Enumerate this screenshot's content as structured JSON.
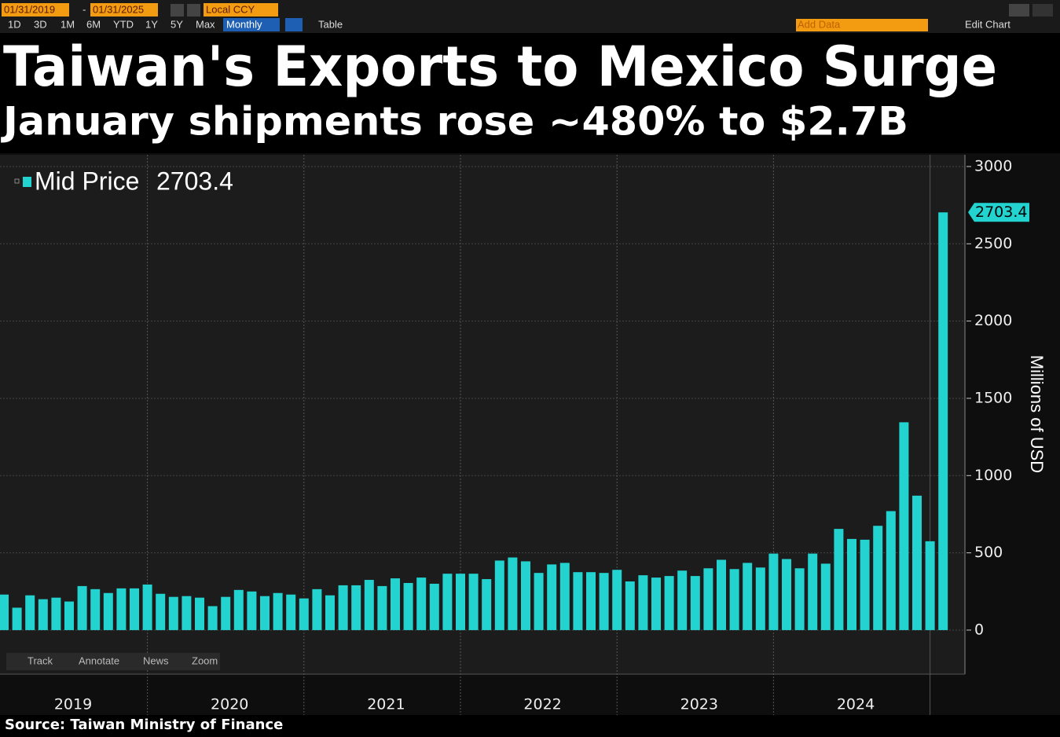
{
  "toolbar": {
    "start_date": "01/31/2019",
    "end_date": "01/31/2025",
    "currency": "Local CCY",
    "ranges": [
      "1D",
      "3D",
      "1M",
      "6M",
      "YTD",
      "1Y",
      "5Y",
      "Max"
    ],
    "frequency": "Monthly",
    "table": "Table",
    "add_data": "Add Data",
    "edit_chart": "Edit Chart"
  },
  "bottom_toolbar": [
    "Track",
    "Annotate",
    "News",
    "Zoom"
  ],
  "chart_data": {
    "type": "bar",
    "title": "Taiwan's Exports to Mexico Surge",
    "subtitle": "January shipments rose ~480% to $2.7B",
    "y_axis_label": "Millions of USD",
    "source": "Source: Taiwan Ministry of Finance",
    "categories": [
      "2019",
      null,
      null,
      null,
      null,
      null,
      null,
      null,
      null,
      null,
      null,
      null,
      "2020",
      null,
      null,
      null,
      null,
      null,
      null,
      null,
      null,
      null,
      null,
      null,
      "2021",
      null,
      null,
      null,
      null,
      null,
      null,
      null,
      null,
      null,
      null,
      null,
      "2022",
      null,
      null,
      null,
      null,
      null,
      null,
      null,
      null,
      null,
      null,
      null,
      "2023",
      null,
      null,
      null,
      null,
      null,
      null,
      null,
      null,
      null,
      null,
      null,
      "2024",
      null,
      null,
      null,
      null,
      null,
      null,
      null,
      null,
      null,
      null,
      null,
      null
    ],
    "series": [
      {
        "name": "Mid Price",
        "color": "#22d3d0",
        "values": [
          230,
          145,
          225,
          200,
          210,
          185,
          285,
          265,
          240,
          270,
          270,
          295,
          235,
          215,
          220,
          210,
          155,
          215,
          260,
          250,
          220,
          240,
          230,
          205,
          265,
          225,
          290,
          290,
          325,
          285,
          335,
          305,
          340,
          300,
          365,
          365,
          365,
          330,
          450,
          470,
          445,
          370,
          425,
          435,
          375,
          375,
          370,
          390,
          315,
          355,
          340,
          350,
          385,
          350,
          400,
          455,
          395,
          435,
          405,
          495,
          460,
          400,
          495,
          430,
          655,
          590,
          585,
          675,
          770,
          1345,
          870,
          575,
          2703.4
        ]
      }
    ],
    "ylim": [
      -285,
      3076
    ],
    "yticks": [
      0,
      500,
      1000,
      1500,
      2000,
      2500,
      3000
    ],
    "grid": true
  }
}
